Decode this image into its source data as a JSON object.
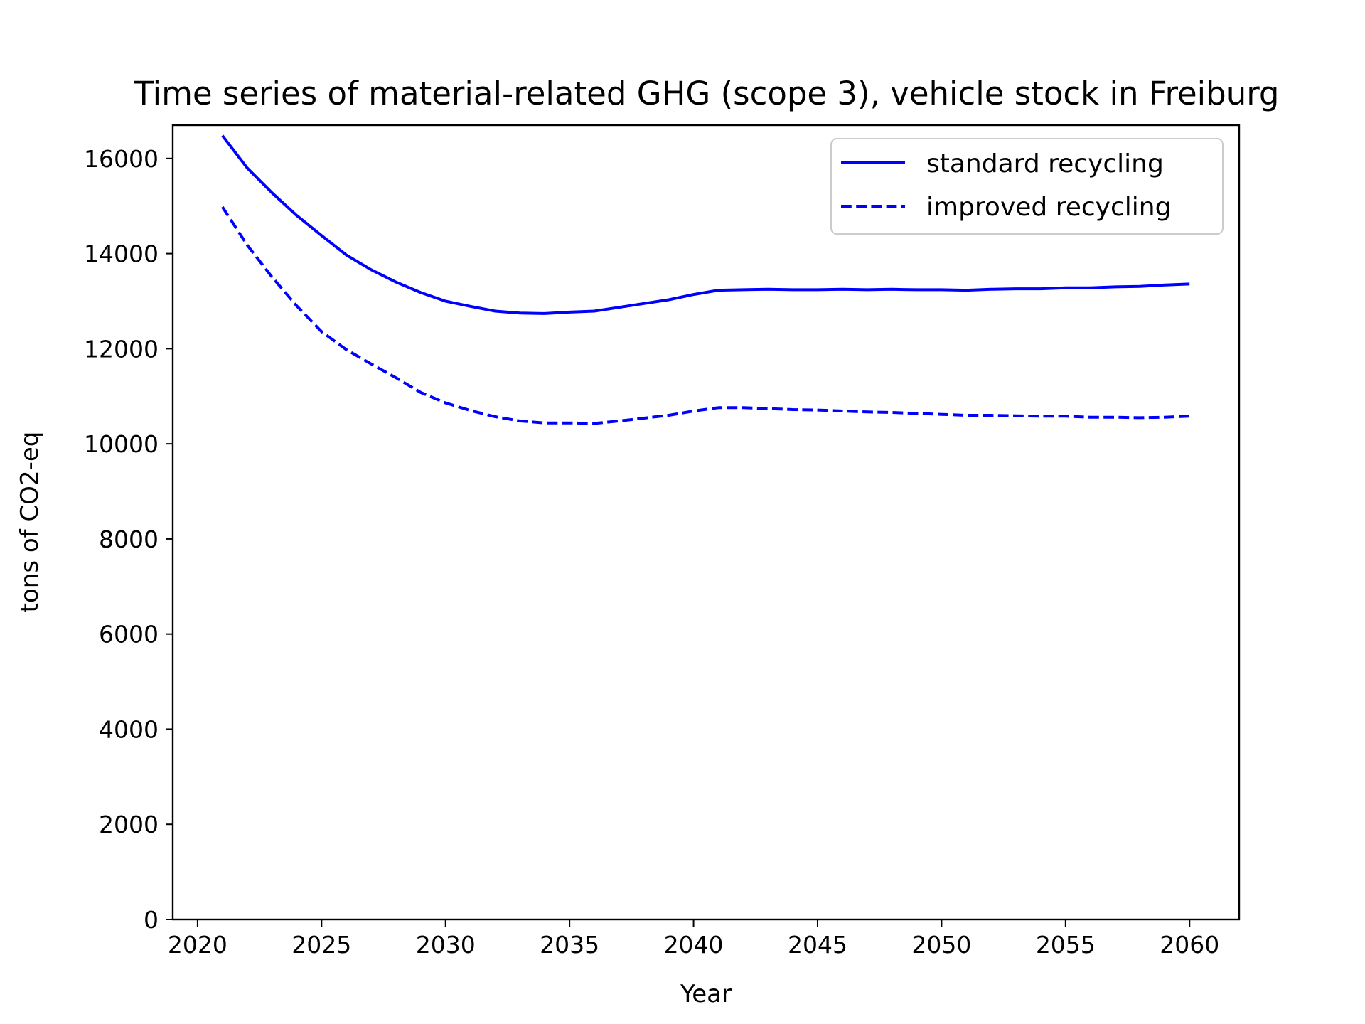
{
  "chart_data": {
    "type": "line",
    "title": "Time series of material-related GHG (scope 3), vehicle stock in Freiburg",
    "xlabel": "Year",
    "ylabel": "tons of CO2-eq",
    "xlim": [
      2019,
      2062
    ],
    "ylim": [
      0,
      16700
    ],
    "xticks": [
      2020,
      2025,
      2030,
      2035,
      2040,
      2045,
      2050,
      2055,
      2060
    ],
    "yticks": [
      0,
      2000,
      4000,
      6000,
      8000,
      10000,
      12000,
      14000,
      16000
    ],
    "grid": false,
    "legend": {
      "position": "top-right",
      "entries": [
        {
          "label": "standard recycling",
          "style": "solid"
        },
        {
          "label": "improved recycling",
          "style": "dashed"
        }
      ]
    },
    "x": [
      2021,
      2022,
      2023,
      2024,
      2025,
      2026,
      2027,
      2028,
      2029,
      2030,
      2031,
      2032,
      2033,
      2034,
      2035,
      2036,
      2037,
      2038,
      2039,
      2040,
      2041,
      2042,
      2043,
      2044,
      2045,
      2046,
      2047,
      2048,
      2049,
      2050,
      2051,
      2052,
      2053,
      2054,
      2055,
      2056,
      2057,
      2058,
      2059,
      2060
    ],
    "series": [
      {
        "name": "standard recycling",
        "color": "#0000ff",
        "dash": "solid",
        "values": [
          16480,
          15800,
          15280,
          14800,
          14380,
          13970,
          13660,
          13400,
          13180,
          13000,
          12890,
          12790,
          12750,
          12740,
          12770,
          12790,
          12870,
          12950,
          13030,
          13140,
          13230,
          13240,
          13250,
          13240,
          13240,
          13250,
          13240,
          13250,
          13240,
          13240,
          13230,
          13250,
          13260,
          13260,
          13280,
          13280,
          13300,
          13310,
          13340,
          13360
        ]
      },
      {
        "name": "improved recycling",
        "color": "#0000ff",
        "dash": "dashed",
        "values": [
          14980,
          14180,
          13510,
          12900,
          12360,
          11980,
          11680,
          11390,
          11080,
          10860,
          10700,
          10570,
          10480,
          10440,
          10440,
          10430,
          10480,
          10540,
          10600,
          10690,
          10760,
          10760,
          10740,
          10720,
          10710,
          10690,
          10670,
          10660,
          10640,
          10620,
          10600,
          10600,
          10590,
          10580,
          10580,
          10560,
          10560,
          10550,
          10560,
          10580
        ]
      }
    ]
  }
}
